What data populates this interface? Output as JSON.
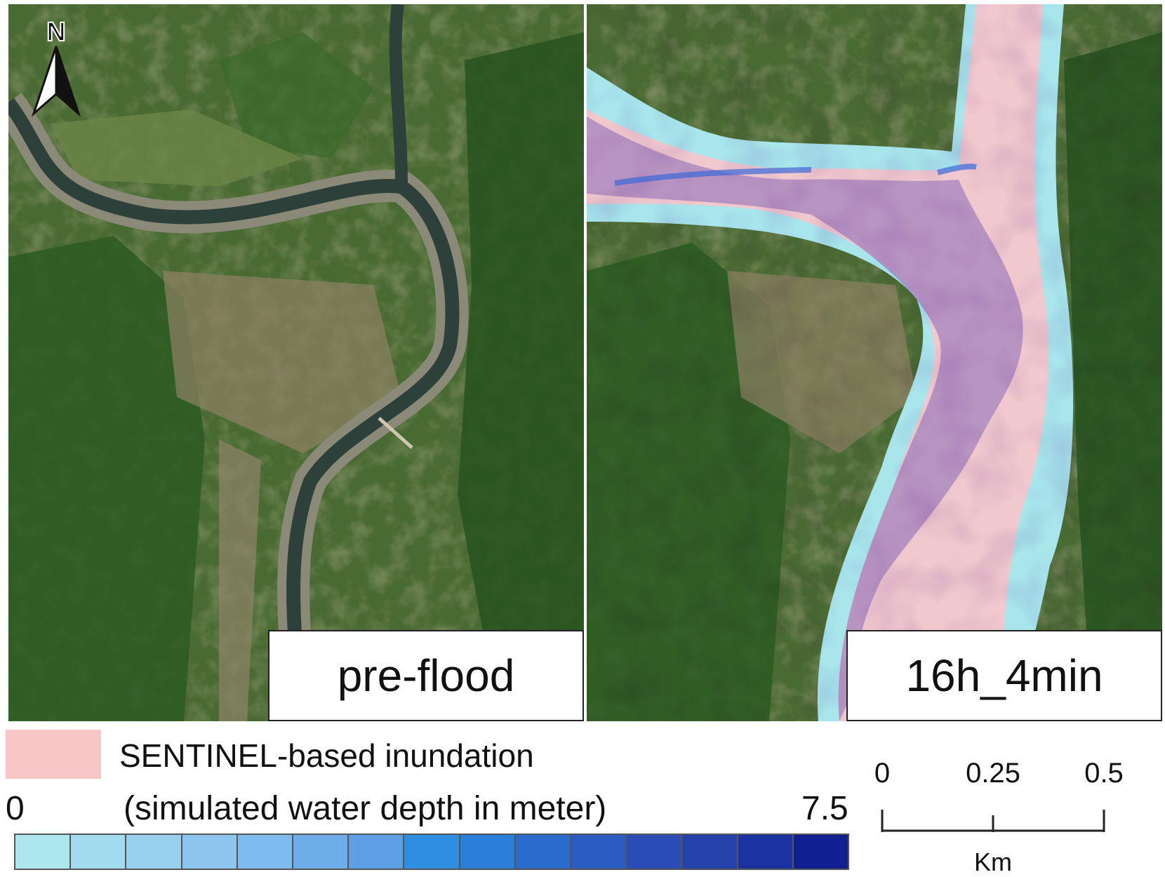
{
  "panels": {
    "left": {
      "label": "pre-flood"
    },
    "right": {
      "label": "16h_4min"
    }
  },
  "north_arrow": {
    "letter": "N",
    "icon": "north-arrow-icon"
  },
  "legend": {
    "sentinel": {
      "label": "SENTINEL-based inundation",
      "color": "#f8c6c6"
    },
    "depth": {
      "min_label": "0",
      "max_label": "7.5",
      "caption": "(simulated water depth in meter)",
      "ramp_colors": [
        "#aee6ee",
        "#a3dcf0",
        "#97d1f0",
        "#8cc6ef",
        "#7ebbee",
        "#6fadea",
        "#5c9fe6",
        "#2e8fe0",
        "#2a7fd8",
        "#2a6ccc",
        "#2a5cc2",
        "#2a4cb6",
        "#2442aa",
        "#1a33a0",
        "#101f92"
      ]
    }
  },
  "scale_bar": {
    "ticks": [
      "0",
      "0.25",
      "0.5"
    ],
    "unit": "Km"
  },
  "colors": {
    "vegetation_dark": "#2c5a22",
    "vegetation_light": "#5e7a3e",
    "soil": "#9c8a6a",
    "river": "#2c3c36",
    "flood_fringe": "#a8e6ec",
    "sentinel_pink": "#f2c4cc",
    "deep_purple": "#8a5aa8"
  }
}
